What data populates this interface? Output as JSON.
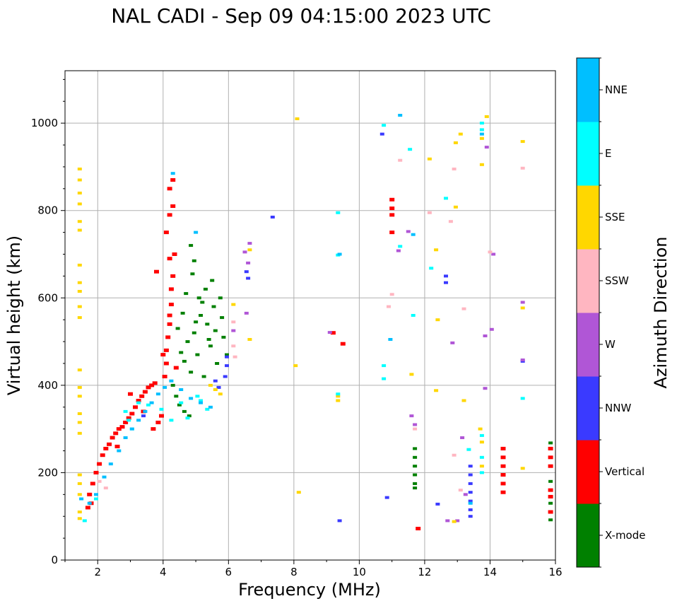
{
  "chart_data": {
    "type": "scatter",
    "title": "NAL CADI - Sep 09 04:15:00 2023 UTC",
    "xlabel": "Frequency (MHz)",
    "ylabel": "Virtual height (km)",
    "xlim": [
      1,
      16
    ],
    "ylim": [
      0,
      1120
    ],
    "xticks": [
      2,
      4,
      6,
      8,
      10,
      12,
      14,
      16
    ],
    "yticks": [
      0,
      200,
      400,
      600,
      800,
      1000
    ],
    "grid": true,
    "colorbar": {
      "label": "Azimuth Direction",
      "categories": [
        "X-mode",
        "Vertical",
        "NNW",
        "W",
        "SSW",
        "SSE",
        "E",
        "NNE"
      ],
      "colors": [
        "#008000",
        "#ff0000",
        "#3a3aff",
        "#b056d6",
        "#ffb6c1",
        "#ffd700",
        "#00ffff",
        "#00bfff"
      ]
    },
    "series": [
      {
        "name": "X-mode",
        "points": [
          [
            4.55,
            475
          ],
          [
            4.65,
            455
          ],
          [
            4.75,
            500
          ],
          [
            4.85,
            430
          ],
          [
            4.95,
            520
          ],
          [
            5.05,
            470
          ],
          [
            5.15,
            560
          ],
          [
            5.25,
            420
          ],
          [
            5.35,
            540
          ],
          [
            5.45,
            490
          ],
          [
            5.55,
            580
          ],
          [
            5.65,
            450
          ],
          [
            5.75,
            600
          ],
          [
            5.85,
            510
          ],
          [
            5.95,
            470
          ],
          [
            4.45,
            530
          ],
          [
            4.7,
            610
          ],
          [
            4.9,
            655
          ],
          [
            5.1,
            600
          ],
          [
            5.3,
            620
          ],
          [
            5.5,
            640
          ],
          [
            4.6,
            565
          ],
          [
            5.0,
            545
          ],
          [
            5.4,
            505
          ],
          [
            5.8,
            555
          ],
          [
            4.3,
            400
          ],
          [
            4.4,
            375
          ],
          [
            4.5,
            355
          ],
          [
            4.65,
            340
          ],
          [
            4.8,
            330
          ],
          [
            5.2,
            590
          ],
          [
            5.6,
            525
          ],
          [
            4.95,
            685
          ],
          [
            4.85,
            720
          ],
          [
            11.7,
            255
          ],
          [
            11.7,
            235
          ],
          [
            11.7,
            215
          ],
          [
            11.7,
            195
          ],
          [
            11.7,
            175
          ],
          [
            11.7,
            165
          ],
          [
            15.85,
            268
          ],
          [
            15.85,
            180
          ],
          [
            15.85,
            130
          ],
          [
            15.85,
            92
          ]
        ]
      },
      {
        "name": "Vertical",
        "points": [
          [
            1.75,
            150
          ],
          [
            1.85,
            175
          ],
          [
            1.95,
            200
          ],
          [
            2.05,
            220
          ],
          [
            2.15,
            240
          ],
          [
            2.25,
            255
          ],
          [
            2.35,
            265
          ],
          [
            2.45,
            280
          ],
          [
            2.55,
            290
          ],
          [
            2.65,
            300
          ],
          [
            2.75,
            305
          ],
          [
            2.85,
            315
          ],
          [
            2.95,
            325
          ],
          [
            3.05,
            335
          ],
          [
            3.15,
            350
          ],
          [
            3.25,
            365
          ],
          [
            3.35,
            375
          ],
          [
            3.45,
            385
          ],
          [
            3.55,
            395
          ],
          [
            3.65,
            400
          ],
          [
            3.75,
            405
          ],
          [
            3.85,
            315
          ],
          [
            3.95,
            330
          ],
          [
            4.05,
            420
          ],
          [
            4.1,
            450
          ],
          [
            4.1,
            480
          ],
          [
            4.15,
            510
          ],
          [
            4.2,
            540
          ],
          [
            4.2,
            560
          ],
          [
            4.25,
            585
          ],
          [
            4.25,
            620
          ],
          [
            4.3,
            650
          ],
          [
            4.2,
            690
          ],
          [
            4.35,
            700
          ],
          [
            4.1,
            750
          ],
          [
            4.2,
            790
          ],
          [
            4.3,
            810
          ],
          [
            4.2,
            850
          ],
          [
            4.3,
            870
          ],
          [
            3.8,
            660
          ],
          [
            3.0,
            380
          ],
          [
            2.6,
            260
          ],
          [
            3.4,
            340
          ],
          [
            3.7,
            300
          ],
          [
            1.7,
            120
          ],
          [
            1.8,
            130
          ],
          [
            4.4,
            440
          ],
          [
            4.0,
            470
          ],
          [
            11.0,
            825
          ],
          [
            11.0,
            805
          ],
          [
            11.0,
            790
          ],
          [
            11.0,
            750
          ],
          [
            11.8,
            72
          ],
          [
            9.2,
            520
          ],
          [
            9.5,
            495
          ],
          [
            14.4,
            255
          ],
          [
            14.4,
            235
          ],
          [
            14.4,
            215
          ],
          [
            14.4,
            195
          ],
          [
            14.4,
            175
          ],
          [
            14.4,
            155
          ],
          [
            15.85,
            255
          ],
          [
            15.85,
            235
          ],
          [
            15.85,
            215
          ],
          [
            15.85,
            160
          ],
          [
            15.85,
            145
          ],
          [
            15.85,
            110
          ]
        ]
      },
      {
        "name": "NNW",
        "points": [
          [
            5.95,
            445
          ],
          [
            5.95,
            465
          ],
          [
            5.9,
            420
          ],
          [
            5.7,
            395
          ],
          [
            5.6,
            410
          ],
          [
            6.55,
            660
          ],
          [
            6.6,
            645
          ],
          [
            7.35,
            785
          ],
          [
            10.7,
            975
          ],
          [
            9.4,
            90
          ],
          [
            12.4,
            128
          ],
          [
            12.65,
            650
          ],
          [
            12.65,
            635
          ],
          [
            13.4,
            215
          ],
          [
            13.4,
            195
          ],
          [
            13.4,
            175
          ],
          [
            13.4,
            155
          ],
          [
            13.4,
            135
          ],
          [
            13.4,
            115
          ],
          [
            13.4,
            100
          ],
          [
            15.0,
            455
          ],
          [
            10.85,
            143
          ],
          [
            3.4,
            330
          ]
        ]
      },
      {
        "name": "W",
        "points": [
          [
            6.15,
            525
          ],
          [
            6.5,
            705
          ],
          [
            6.65,
            725
          ],
          [
            6.6,
            680
          ],
          [
            6.55,
            565
          ],
          [
            11.5,
            752
          ],
          [
            11.2,
            708
          ],
          [
            12.85,
            497
          ],
          [
            13.15,
            280
          ],
          [
            13.25,
            150
          ],
          [
            13.9,
            945
          ],
          [
            14.1,
            700
          ],
          [
            14.05,
            528
          ],
          [
            13.85,
            513
          ],
          [
            13.85,
            393
          ],
          [
            15.0,
            590
          ],
          [
            15.0,
            458
          ],
          [
            12.7,
            90
          ],
          [
            13.0,
            90
          ],
          [
            11.6,
            330
          ],
          [
            11.7,
            310
          ],
          [
            9.1,
            521
          ]
        ]
      },
      {
        "name": "SSW",
        "points": [
          [
            6.15,
            545
          ],
          [
            6.2,
            465
          ],
          [
            6.15,
            490
          ],
          [
            2.05,
            180
          ],
          [
            2.25,
            165
          ],
          [
            11.7,
            300
          ],
          [
            12.9,
            895
          ],
          [
            13.2,
            575
          ],
          [
            12.9,
            240
          ],
          [
            12.8,
            775
          ],
          [
            13.1,
            160
          ],
          [
            12.15,
            795
          ],
          [
            11.0,
            608
          ],
          [
            10.9,
            580
          ],
          [
            11.25,
            915
          ],
          [
            15.0,
            897
          ],
          [
            14.0,
            705
          ]
        ]
      },
      {
        "name": "SSE",
        "points": [
          [
            1.45,
            895
          ],
          [
            1.45,
            870
          ],
          [
            1.45,
            840
          ],
          [
            1.45,
            815
          ],
          [
            1.45,
            775
          ],
          [
            1.45,
            755
          ],
          [
            1.45,
            675
          ],
          [
            1.45,
            635
          ],
          [
            1.45,
            615
          ],
          [
            1.45,
            580
          ],
          [
            1.45,
            555
          ],
          [
            1.45,
            435
          ],
          [
            1.45,
            395
          ],
          [
            1.45,
            375
          ],
          [
            1.45,
            335
          ],
          [
            1.45,
            315
          ],
          [
            1.45,
            290
          ],
          [
            1.45,
            195
          ],
          [
            1.45,
            175
          ],
          [
            1.45,
            150
          ],
          [
            1.45,
            110
          ],
          [
            1.45,
            95
          ],
          [
            5.6,
            390
          ],
          [
            5.45,
            400
          ],
          [
            5.75,
            380
          ],
          [
            6.15,
            585
          ],
          [
            6.65,
            505
          ],
          [
            6.65,
            710
          ],
          [
            8.1,
            1010
          ],
          [
            8.05,
            445
          ],
          [
            8.15,
            155
          ],
          [
            9.35,
            375
          ],
          [
            9.35,
            365
          ],
          [
            11.6,
            425
          ],
          [
            12.15,
            918
          ],
          [
            12.35,
            710
          ],
          [
            12.4,
            550
          ],
          [
            12.35,
            388
          ],
          [
            12.95,
            955
          ],
          [
            12.95,
            808
          ],
          [
            13.1,
            975
          ],
          [
            13.2,
            365
          ],
          [
            13.75,
            905
          ],
          [
            13.75,
            965
          ],
          [
            13.75,
            270
          ],
          [
            13.75,
            215
          ],
          [
            13.9,
            1015
          ],
          [
            15.0,
            958
          ],
          [
            15.0,
            577
          ],
          [
            15.0,
            210
          ],
          [
            12.9,
            88
          ],
          [
            13.7,
            300
          ]
        ]
      },
      {
        "name": "E",
        "points": [
          [
            3.05,
            300
          ],
          [
            2.95,
            320
          ],
          [
            2.85,
            340
          ],
          [
            3.25,
            360
          ],
          [
            3.55,
            355
          ],
          [
            3.95,
            345
          ],
          [
            4.25,
            320
          ],
          [
            4.55,
            360
          ],
          [
            5.05,
            375
          ],
          [
            5.15,
            365
          ],
          [
            4.75,
            325
          ],
          [
            5.35,
            345
          ],
          [
            9.35,
            795
          ],
          [
            9.35,
            698
          ],
          [
            9.35,
            380
          ],
          [
            10.75,
            995
          ],
          [
            10.75,
            445
          ],
          [
            10.75,
            415
          ],
          [
            11.25,
            718
          ],
          [
            11.55,
            940
          ],
          [
            11.65,
            560
          ],
          [
            12.2,
            668
          ],
          [
            12.65,
            828
          ],
          [
            13.35,
            253
          ],
          [
            13.75,
            1000
          ],
          [
            13.75,
            985
          ],
          [
            13.75,
            285
          ],
          [
            13.75,
            235
          ],
          [
            13.75,
            200
          ],
          [
            15.0,
            370
          ],
          [
            1.95,
            140
          ],
          [
            1.6,
            90
          ]
        ]
      },
      {
        "name": "NNE",
        "points": [
          [
            1.5,
            140
          ],
          [
            1.75,
            130
          ],
          [
            1.95,
            150
          ],
          [
            2.2,
            190
          ],
          [
            2.4,
            220
          ],
          [
            2.65,
            250
          ],
          [
            2.85,
            280
          ],
          [
            3.05,
            300
          ],
          [
            3.25,
            320
          ],
          [
            3.45,
            340
          ],
          [
            3.65,
            360
          ],
          [
            3.85,
            380
          ],
          [
            4.05,
            395
          ],
          [
            4.25,
            410
          ],
          [
            4.55,
            390
          ],
          [
            4.85,
            370
          ],
          [
            5.15,
            360
          ],
          [
            5.45,
            350
          ],
          [
            4.3,
            885
          ],
          [
            5.0,
            750
          ],
          [
            9.4,
            700
          ],
          [
            10.95,
            505
          ],
          [
            11.25,
            1018
          ],
          [
            11.65,
            745
          ],
          [
            13.75,
            975
          ],
          [
            13.4,
            130
          ]
        ]
      }
    ]
  }
}
